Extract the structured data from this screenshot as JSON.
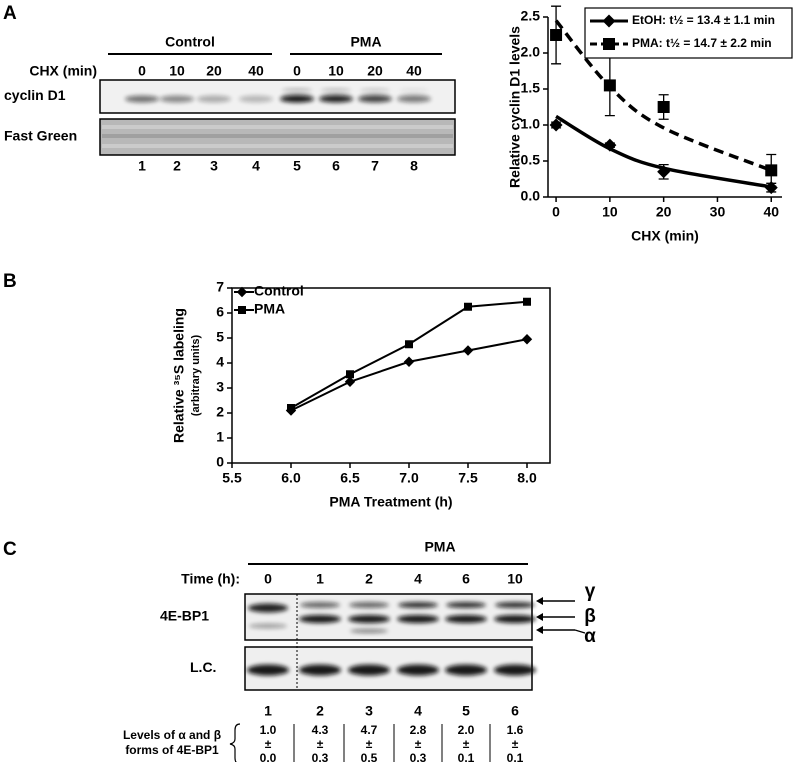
{
  "panel_a": {
    "label": "A",
    "blot": {
      "groups": [
        "Control",
        "PMA"
      ],
      "time_label": "CHX (min)",
      "times": [
        "0",
        "10",
        "20",
        "40",
        "0",
        "10",
        "20",
        "40"
      ],
      "rows": [
        "cyclin D1",
        "Fast Green"
      ],
      "lanes": [
        "1",
        "2",
        "3",
        "4",
        "5",
        "6",
        "7",
        "8"
      ]
    }
  },
  "panel_b": {
    "label": "B"
  },
  "panel_c": {
    "label": "C",
    "group": "PMA",
    "time_label": "Time (h):",
    "times": [
      "0",
      "1",
      "2",
      "4",
      "6",
      "10"
    ],
    "rows": [
      "4E-BP1",
      "L.C."
    ],
    "bands": [
      "γ",
      "β",
      "α"
    ],
    "lanes": [
      "1",
      "2",
      "3",
      "4",
      "5",
      "6"
    ],
    "levels": {
      "label": [
        "Levels of α and β",
        "forms of 4E-BP1"
      ],
      "values": [
        [
          "1.0",
          "±",
          "0.0"
        ],
        [
          "4.3",
          "±",
          "0.3"
        ],
        [
          "4.7",
          "±",
          "0.5"
        ],
        [
          "2.8",
          "±",
          "0.3"
        ],
        [
          "2.0",
          "±",
          "0.1"
        ],
        [
          "1.6",
          "±",
          "0.1"
        ]
      ]
    }
  },
  "chart_data": [
    {
      "type": "scatter",
      "x_label": "CHX (min)",
      "y_label": "Relative cyclin D1 levels",
      "x": [
        0,
        10,
        20,
        40
      ],
      "xlim": [
        -1.5,
        42
      ],
      "xticks": [
        0,
        10,
        20,
        30,
        40
      ],
      "ylim": [
        0,
        2.5
      ],
      "yticks": [
        {
          "value": 0,
          "label": "0.0"
        },
        0.5,
        {
          "value": 1,
          "label": "1.0"
        },
        1.5,
        {
          "value": 2,
          "label": "2.0"
        },
        2.5
      ],
      "legend": "upper right",
      "series": [
        {
          "name": "EtOH: t½ = 13.4 ± 1.1 min",
          "color": "#000000",
          "marker": "diamond",
          "fit_style": "solid",
          "values": [
            1.0,
            0.72,
            0.35,
            0.13
          ],
          "errors": [
            0.04,
            0.03,
            0.1,
            0.06
          ],
          "fit_values": [
            1.12,
            0.67,
            0.4,
            0.14
          ]
        },
        {
          "name": "PMA:  t½ = 14.7 ± 2.2 min",
          "color": "#000000",
          "marker": "square",
          "fit_style": "dashed",
          "values": [
            2.25,
            1.55,
            1.25,
            0.37
          ],
          "errors": [
            0.4,
            0.42,
            0.17,
            0.22
          ],
          "fit_values": [
            2.45,
            1.53,
            0.96,
            0.37
          ]
        }
      ]
    },
    {
      "type": "line",
      "x_label": "PMA Treatment (h)",
      "y_label": "Relative ³⁵S labeling",
      "y_sublabel": "(arbitrary units)",
      "x": [
        6,
        6.5,
        7,
        7.5,
        8
      ],
      "xlim": [
        5.5,
        8
      ],
      "xticks": [
        5.5,
        {
          "value": 6,
          "label": "6.0"
        },
        6.5,
        {
          "value": 7,
          "label": "7.0"
        },
        7.5,
        {
          "value": 8,
          "label": "8.0"
        }
      ],
      "ylim": [
        0,
        7
      ],
      "yticks": [
        0,
        1,
        2,
        3,
        4,
        5,
        6,
        7
      ],
      "legend": "upper left",
      "series": [
        {
          "name": "Control",
          "color": "#000000",
          "marker": "diamond",
          "values": [
            2.1,
            3.25,
            4.05,
            4.5,
            4.95
          ]
        },
        {
          "name": "PMA",
          "color": "#000000",
          "marker": "square",
          "values": [
            2.2,
            3.55,
            4.75,
            6.25,
            6.45
          ]
        }
      ]
    }
  ]
}
